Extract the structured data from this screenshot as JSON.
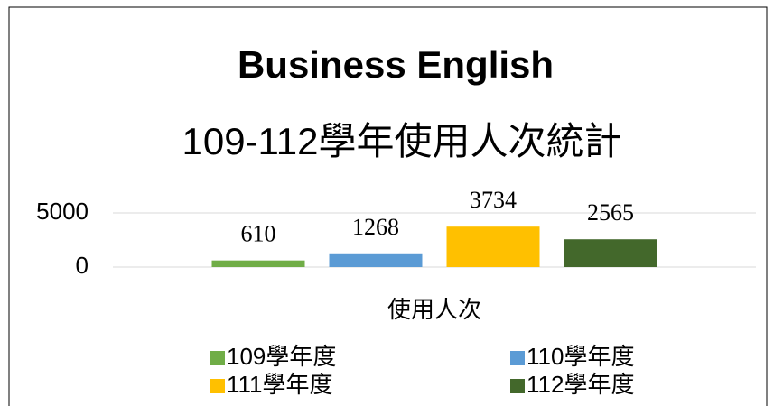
{
  "chart_data": {
    "type": "bar",
    "title": "Business English",
    "subtitle": "109-112學年使用人次統計",
    "categories": [
      "使用人次"
    ],
    "series": [
      {
        "name": "109學年度",
        "color": "#70ad47",
        "values": [
          610
        ]
      },
      {
        "name": "110學年度",
        "color": "#5b9bd5",
        "values": [
          1268
        ]
      },
      {
        "name": "111學年度",
        "color": "#ffc000",
        "values": [
          3734
        ]
      },
      {
        "name": "112學年度",
        "color": "#43682b",
        "values": [
          2565
        ]
      }
    ],
    "ylim": [
      0,
      5000
    ],
    "yticks": [
      0,
      5000
    ],
    "grid": true,
    "legend": "bottom"
  }
}
